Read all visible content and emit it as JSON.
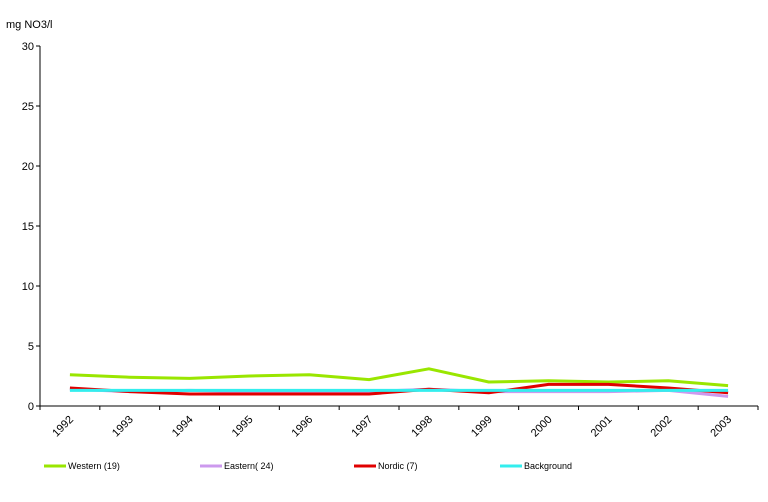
{
  "chart_data": {
    "type": "line",
    "title": "",
    "xlabel": "",
    "ylabel": "mg NO3/l",
    "ylim": [
      0,
      30
    ],
    "yticks": [
      0,
      5,
      10,
      15,
      20,
      25,
      30
    ],
    "grid": false,
    "legend_position": "bottom",
    "categories": [
      "1992",
      "1993",
      "1994",
      "1995",
      "1996",
      "1997",
      "1998",
      "1999",
      "2000",
      "2001",
      "2002",
      "2003"
    ],
    "series": [
      {
        "name": "Western (19)",
        "color": "#99e600",
        "values": [
          2.6,
          2.4,
          2.3,
          2.5,
          2.6,
          2.2,
          3.1,
          2.0,
          2.1,
          2.0,
          2.1,
          1.7
        ]
      },
      {
        "name": "Eastern( 24)",
        "color": "#cc99ee",
        "values": [
          1.4,
          1.2,
          1.3,
          1.2,
          1.2,
          1.2,
          1.4,
          1.2,
          1.2,
          1.2,
          1.3,
          0.8
        ]
      },
      {
        "name": "Nordic (7)",
        "color": "#e00000",
        "values": [
          1.5,
          1.2,
          1.0,
          1.0,
          1.0,
          1.0,
          1.4,
          1.1,
          1.8,
          1.8,
          1.5,
          1.1
        ]
      },
      {
        "name": "Background",
        "color": "#33eeee",
        "values": [
          1.3,
          1.3,
          1.3,
          1.3,
          1.3,
          1.3,
          1.3,
          1.3,
          1.3,
          1.3,
          1.3,
          1.3
        ]
      }
    ]
  }
}
